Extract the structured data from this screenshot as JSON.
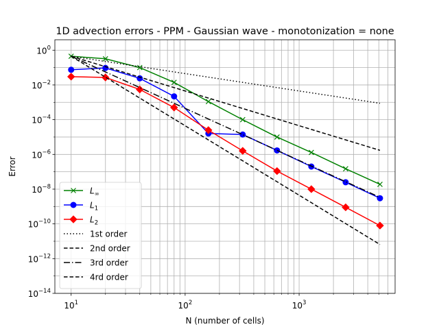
{
  "chart_data": {
    "type": "line",
    "title": "1D advection errors - PPM - Gaussian wave - monotonization = none",
    "xlabel": "N (number of cells)",
    "ylabel": "Error",
    "xscale": "log",
    "yscale": "log",
    "xlim": [
      7.2,
      6950
    ],
    "ylim": [
      1e-14,
      4
    ],
    "grid": "major and minor (x), major (y)",
    "legend_position": "lower-left",
    "x_tick_labels": [
      {
        "value": 10,
        "base": "10",
        "exp": "1"
      },
      {
        "value": 100,
        "base": "10",
        "exp": "2"
      },
      {
        "value": 1000,
        "base": "10",
        "exp": "3"
      }
    ],
    "y_tick_labels": [
      {
        "value": 1.0,
        "base": "10",
        "exp": "0"
      },
      {
        "value": 0.01,
        "base": "10",
        "exp": "−2"
      },
      {
        "value": 0.0001,
        "base": "10",
        "exp": "−4"
      },
      {
        "value": 1e-06,
        "base": "10",
        "exp": "−6"
      },
      {
        "value": 1e-08,
        "base": "10",
        "exp": "−8"
      },
      {
        "value": 1e-10,
        "base": "10",
        "exp": "−10"
      },
      {
        "value": 1e-12,
        "base": "10",
        "exp": "−12"
      },
      {
        "value": 1e-14,
        "base": "10",
        "exp": "−14"
      }
    ],
    "x": [
      10,
      20,
      40,
      80,
      160,
      320,
      640,
      1280,
      2560,
      5120
    ],
    "series": [
      {
        "name": "L∞",
        "label_base": "L",
        "label_sub": "∞",
        "color": "#008000",
        "marker": "x",
        "linestyle": "solid",
        "values": [
          0.45,
          0.32,
          0.1,
          0.014,
          0.0011,
          0.0001,
          1e-05,
          1.3e-06,
          1.5e-07,
          1.9e-08
        ]
      },
      {
        "name": "L1",
        "label_base": "L",
        "label_sub": "1",
        "color": "#0000ff",
        "marker": "circle",
        "linestyle": "solid",
        "values": [
          0.075,
          0.095,
          0.024,
          0.0022,
          1.6e-05,
          1.4e-05,
          1.7e-06,
          2e-07,
          2.5e-08,
          3e-09
        ]
      },
      {
        "name": "L2",
        "label_base": "L",
        "label_sub": "2",
        "color": "#ff0000",
        "marker": "diamond",
        "linestyle": "solid",
        "values": [
          0.03,
          0.027,
          0.0055,
          0.0005,
          2.5e-05,
          1.6e-06,
          1.1e-07,
          1e-08,
          9e-10,
          8e-11
        ]
      },
      {
        "name": "1st order",
        "color": "#000000",
        "marker": "none",
        "linestyle": "dotted",
        "x": [
          10,
          5120
        ],
        "values": [
          0.45,
          0.00088
        ]
      },
      {
        "name": "2nd order",
        "color": "#000000",
        "marker": "none",
        "linestyle": "dashed",
        "x": [
          10,
          5120
        ],
        "values": [
          0.45,
          1.72e-06
        ]
      },
      {
        "name": "3rd order",
        "color": "#000000",
        "marker": "none",
        "linestyle": "dashdot",
        "x": [
          10,
          5120
        ],
        "values": [
          0.45,
          3.35e-09
        ]
      },
      {
        "name": "4rd order",
        "color": "#000000",
        "marker": "none",
        "linestyle": "dashed",
        "x": [
          10,
          5120
        ],
        "values": [
          0.45,
          6.5e-12
        ]
      }
    ]
  }
}
